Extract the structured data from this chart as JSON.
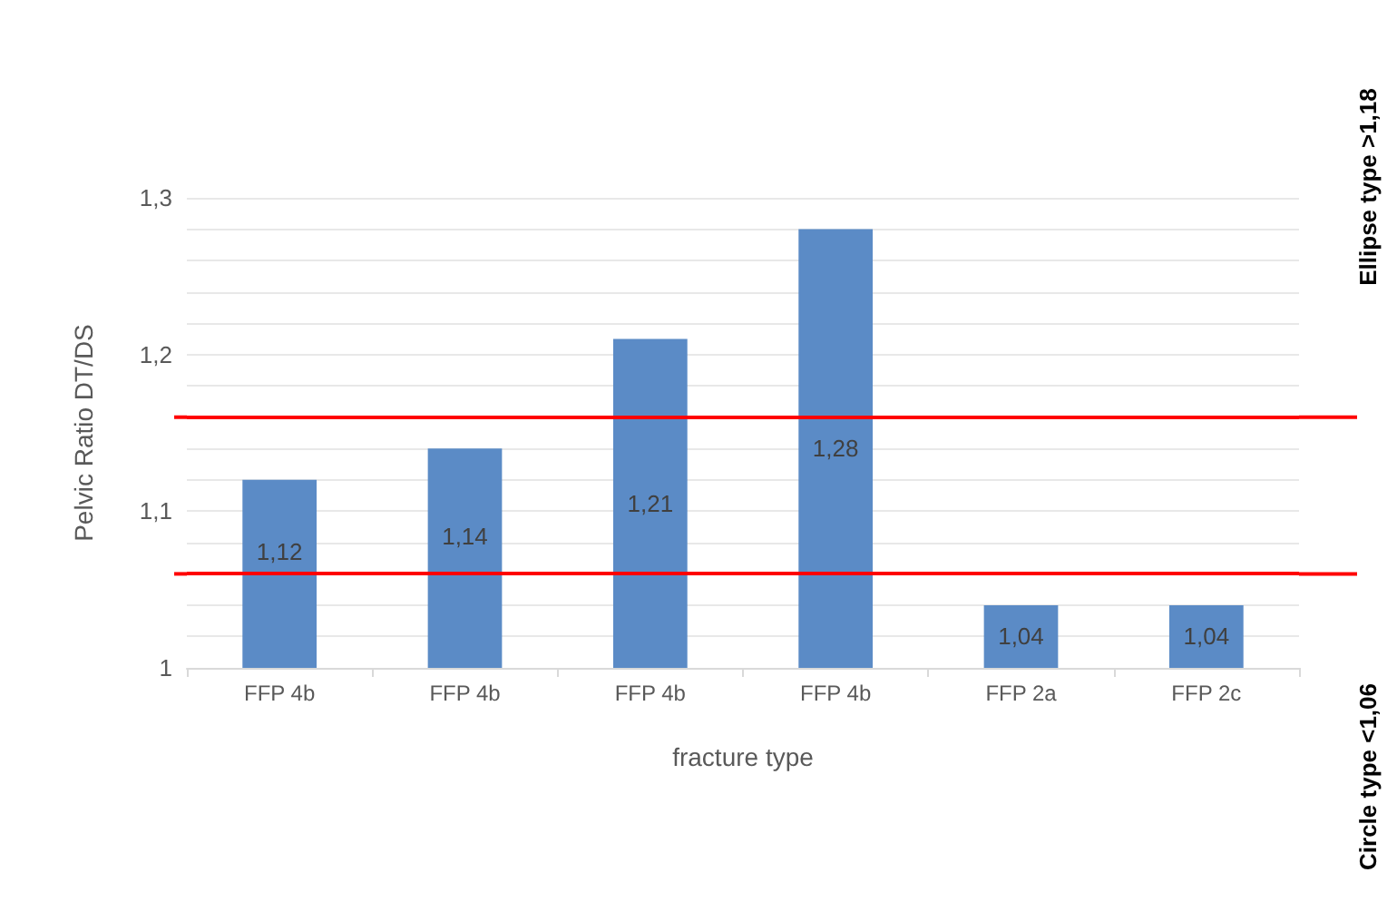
{
  "chart_data": {
    "type": "bar",
    "xlabel": "fracture type",
    "ylabel": "Pelvic Ratio DT/DS",
    "categories": [
      "FFP 4b",
      "FFP 4b",
      "FFP 4b",
      "FFP 4b",
      "FFP 2a",
      "FFP 2c"
    ],
    "values": [
      1.12,
      1.14,
      1.21,
      1.28,
      1.04,
      1.04
    ],
    "value_labels": [
      "1,12",
      "1,14",
      "1,21",
      "1,28",
      "1,04",
      "1,04"
    ],
    "color": "#5b8bc6",
    "ylim": [
      1,
      1.3
    ],
    "yticks": [
      {
        "value": 1,
        "label": "1"
      },
      {
        "value": 1.02,
        "label": null
      },
      {
        "value": 1.04,
        "label": null
      },
      {
        "value": 1.08,
        "label": null
      },
      {
        "value": 1.1,
        "label": "1,1"
      },
      {
        "value": 1.12,
        "label": null
      },
      {
        "value": 1.14,
        "label": null
      },
      {
        "value": 1.18,
        "label": null
      },
      {
        "value": 1.2,
        "label": "1,2"
      },
      {
        "value": 1.22,
        "label": null
      },
      {
        "value": 1.24,
        "label": null
      },
      {
        "value": 1.26,
        "label": null
      },
      {
        "value": 1.28,
        "label": null
      },
      {
        "value": 1.3,
        "label": "1,3"
      }
    ],
    "grid": "y",
    "ref_lines": [
      {
        "axis": "y",
        "value": 1.16,
        "color": "#ff0000"
      },
      {
        "axis": "y",
        "value": 1.06,
        "color": "#ff0000"
      }
    ],
    "annotations": [
      "Ellipse type >1,18",
      "Circle type <1,06"
    ]
  }
}
